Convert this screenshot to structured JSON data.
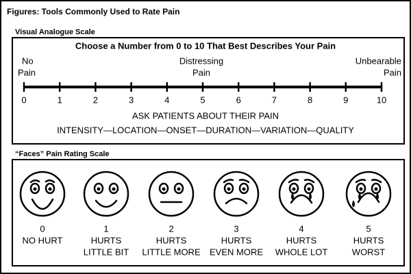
{
  "title": "Figures: Tools Commonly Used to Rate Pain",
  "vas": {
    "heading": "Visual Analogue Scale",
    "instruction": "Choose a Number from 0 to 10 That Best Describes Your Pain",
    "anchors": [
      {
        "lines": [
          "No",
          "Pain"
        ]
      },
      {
        "lines": [
          "Distressing",
          "Pain"
        ]
      },
      {
        "lines": [
          "Unbearable",
          "Pain"
        ]
      }
    ],
    "scale": [
      0,
      1,
      2,
      3,
      4,
      5,
      6,
      7,
      8,
      9,
      10
    ],
    "prompt": "ASK PATIENTS ABOUT THEIR PAIN",
    "aspects": "INTENSITY—LOCATION—ONSET—DURATION—VARIATION—QUALITY"
  },
  "faces": {
    "heading": "“Faces” Pain Rating Scale",
    "items": [
      {
        "score": 0,
        "lines": [
          "NO HURT"
        ]
      },
      {
        "score": 1,
        "lines": [
          "HURTS",
          "LITTLE BIT"
        ]
      },
      {
        "score": 2,
        "lines": [
          "HURTS",
          "LITTLE MORE"
        ]
      },
      {
        "score": 3,
        "lines": [
          "HURTS",
          "EVEN MORE"
        ]
      },
      {
        "score": 4,
        "lines": [
          "HURTS",
          "WHOLE LOT"
        ]
      },
      {
        "score": 5,
        "lines": [
          "HURTS",
          "WORST"
        ]
      }
    ]
  }
}
